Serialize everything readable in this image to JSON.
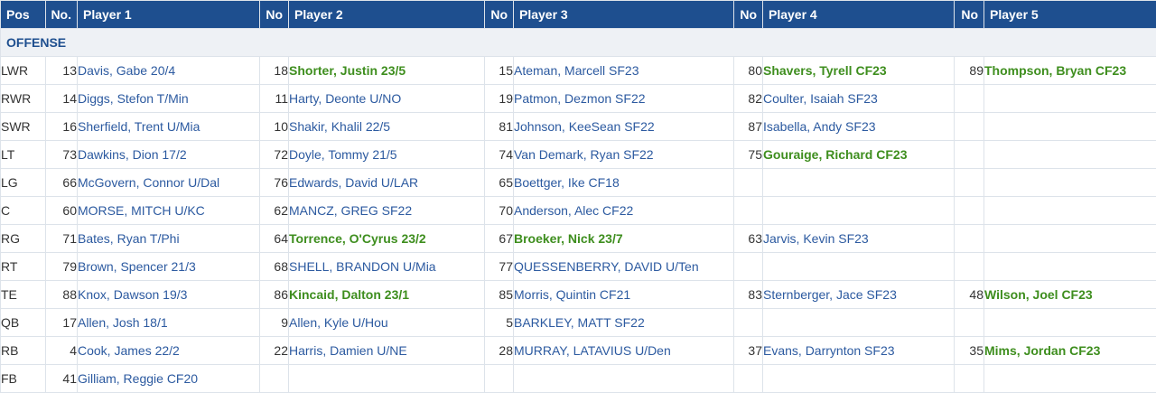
{
  "header": {
    "pos": "Pos",
    "no": "No.",
    "no_short": "No",
    "players": [
      "Player 1",
      "Player 2",
      "Player 3",
      "Player 4",
      "Player 5"
    ]
  },
  "section": "OFFENSE",
  "colors": {
    "header_bg": "#1e4f8f",
    "link": "#2c5aa0",
    "highlight": "#3e8e1e"
  },
  "rows": [
    {
      "pos": "LWR",
      "p": [
        [
          "13",
          "Davis, Gabe 20/4",
          false
        ],
        [
          "18",
          "Shorter, Justin 23/5",
          true
        ],
        [
          "15",
          "Ateman, Marcell SF23",
          false
        ],
        [
          "80",
          "Shavers, Tyrell CF23",
          true
        ],
        [
          "89",
          "Thompson, Bryan CF23",
          true
        ]
      ]
    },
    {
      "pos": "RWR",
      "p": [
        [
          "14",
          "Diggs, Stefon T/Min",
          false
        ],
        [
          "11",
          "Harty, Deonte U/NO",
          false
        ],
        [
          "19",
          "Patmon, Dezmon SF22",
          false
        ],
        [
          "82",
          "Coulter, Isaiah SF23",
          false
        ],
        [
          "",
          ""
        ]
      ]
    },
    {
      "pos": "SWR",
      "p": [
        [
          "16",
          "Sherfield, Trent U/Mia",
          false
        ],
        [
          "10",
          "Shakir, Khalil 22/5",
          false
        ],
        [
          "81",
          "Johnson, KeeSean SF22",
          false
        ],
        [
          "87",
          "Isabella, Andy SF23",
          false
        ],
        [
          "",
          ""
        ]
      ]
    },
    {
      "pos": "LT",
      "p": [
        [
          "73",
          "Dawkins, Dion 17/2",
          false
        ],
        [
          "72",
          "Doyle, Tommy 21/5",
          false
        ],
        [
          "74",
          "Van Demark, Ryan SF22",
          false
        ],
        [
          "75",
          "Gouraige, Richard CF23",
          true
        ],
        [
          "",
          ""
        ]
      ]
    },
    {
      "pos": "LG",
      "p": [
        [
          "66",
          "McGovern, Connor U/Dal",
          false
        ],
        [
          "76",
          "Edwards, David U/LAR",
          false
        ],
        [
          "65",
          "Boettger, Ike CF18",
          false
        ],
        [
          "",
          ""
        ],
        [
          "",
          ""
        ]
      ]
    },
    {
      "pos": "C",
      "p": [
        [
          "60",
          "MORSE, MITCH U/KC",
          false
        ],
        [
          "62",
          "MANCZ, GREG SF22",
          false
        ],
        [
          "70",
          "Anderson, Alec CF22",
          false
        ],
        [
          "",
          ""
        ],
        [
          "",
          ""
        ]
      ]
    },
    {
      "pos": "RG",
      "p": [
        [
          "71",
          "Bates, Ryan T/Phi",
          false
        ],
        [
          "64",
          "Torrence, O'Cyrus 23/2",
          true
        ],
        [
          "67",
          "Broeker, Nick 23/7",
          true
        ],
        [
          "63",
          "Jarvis, Kevin SF23",
          false
        ],
        [
          "",
          ""
        ]
      ]
    },
    {
      "pos": "RT",
      "p": [
        [
          "79",
          "Brown, Spencer 21/3",
          false
        ],
        [
          "68",
          "SHELL, BRANDON U/Mia",
          false
        ],
        [
          "77",
          "QUESSENBERRY, DAVID U/Ten",
          false
        ],
        [
          "",
          ""
        ],
        [
          "",
          ""
        ]
      ]
    },
    {
      "pos": "TE",
      "p": [
        [
          "88",
          "Knox, Dawson 19/3",
          false
        ],
        [
          "86",
          "Kincaid, Dalton 23/1",
          true
        ],
        [
          "85",
          "Morris, Quintin CF21",
          false
        ],
        [
          "83",
          "Sternberger, Jace SF23",
          false
        ],
        [
          "48",
          "Wilson, Joel CF23",
          true
        ]
      ]
    },
    {
      "pos": "QB",
      "p": [
        [
          "17",
          "Allen, Josh 18/1",
          false
        ],
        [
          "9",
          "Allen, Kyle U/Hou",
          false
        ],
        [
          "5",
          "BARKLEY, MATT SF22",
          false
        ],
        [
          "",
          ""
        ],
        [
          "",
          ""
        ]
      ]
    },
    {
      "pos": "RB",
      "p": [
        [
          "4",
          "Cook, James 22/2",
          false
        ],
        [
          "22",
          "Harris, Damien U/NE",
          false
        ],
        [
          "28",
          "MURRAY, LATAVIUS U/Den",
          false
        ],
        [
          "37",
          "Evans, Darrynton SF23",
          false
        ],
        [
          "35",
          "Mims, Jordan CF23",
          true
        ]
      ]
    },
    {
      "pos": "FB",
      "p": [
        [
          "41",
          "Gilliam, Reggie CF20",
          false
        ],
        [
          "",
          ""
        ],
        [
          "",
          ""
        ],
        [
          "",
          ""
        ],
        [
          "",
          ""
        ]
      ]
    }
  ]
}
